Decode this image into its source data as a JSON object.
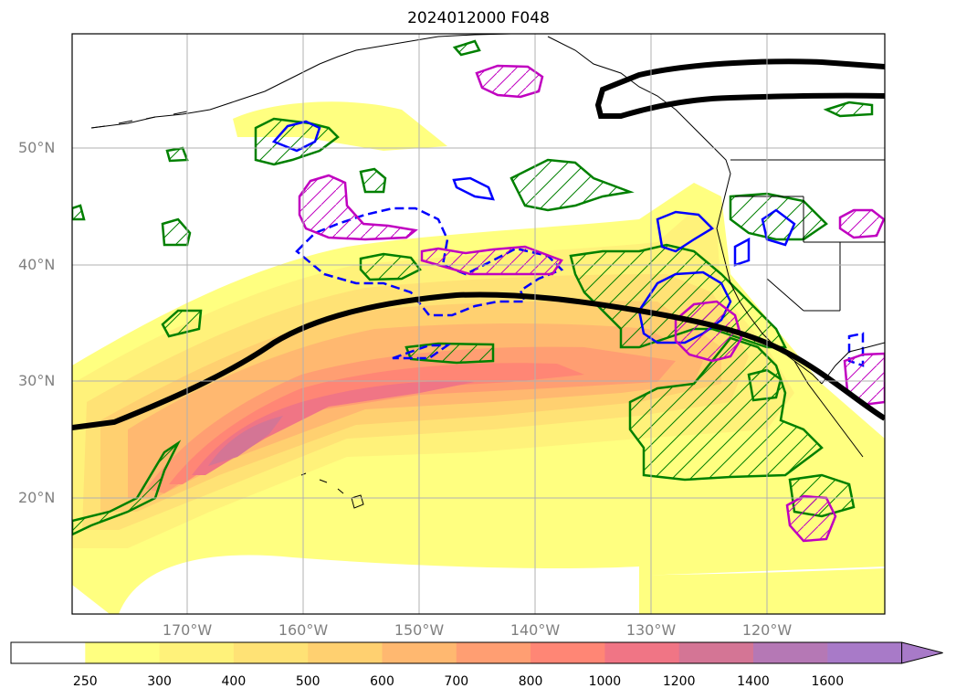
{
  "title": "2024012000 F048",
  "lat_labels": [
    "50°N",
    "40°N",
    "30°N",
    "20°N"
  ],
  "lon_labels": [
    "170°W",
    "160°W",
    "150°W",
    "140°W",
    "130°W",
    "120°W"
  ],
  "colorbar": {
    "ticks": [
      "250",
      "300",
      "400",
      "500",
      "600",
      "700",
      "800",
      "1000",
      "1200",
      "1400",
      "1600"
    ],
    "colors": [
      "#ffffff",
      "#ffff80",
      "#fff27a",
      "#ffe275",
      "#ffd070",
      "#ffb870",
      "#ff9e72",
      "#ff8675",
      "#f07585",
      "#d47595",
      "#b578b5",
      "#a87ac8"
    ],
    "extend": "max"
  },
  "legend_colors": {
    "jet_axis": "#000000",
    "green_contour": "#008000",
    "blue_contour": "#0000ff",
    "magenta_contour": "#c000c0"
  }
}
